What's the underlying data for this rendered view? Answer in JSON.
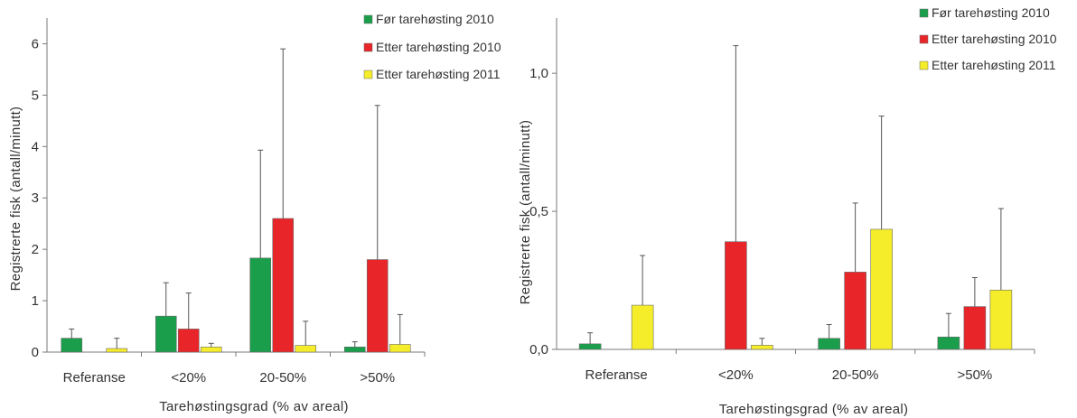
{
  "chart_data": [
    {
      "type": "bar",
      "categories": [
        "Referanse",
        "<20%",
        "20-50%",
        ">50%"
      ],
      "series": [
        {
          "name": "Før tarehøsting 2010",
          "color": "#1a9e4b",
          "values": [
            0.27,
            0.7,
            1.83,
            0.1
          ],
          "errors": [
            0.18,
            0.65,
            2.1,
            0.1
          ]
        },
        {
          "name": "Etter tarehøsting 2010",
          "color": "#e8262a",
          "values": [
            null,
            0.45,
            2.6,
            1.8
          ],
          "errors": [
            null,
            0.7,
            3.3,
            3.0
          ]
        },
        {
          "name": "Etter tarehøsting 2011",
          "color": "#f5ec2a",
          "values": [
            0.07,
            0.1,
            0.13,
            0.15
          ],
          "errors": [
            0.2,
            0.07,
            0.47,
            0.58
          ]
        }
      ],
      "yticks": [
        "0",
        "1",
        "2",
        "3",
        "4",
        "5",
        "6"
      ],
      "ylim": [
        0,
        6.5
      ],
      "ylabel": "Registrerte fisk  (antall/minutt)",
      "xlabel": "Tarehøstingsgrad  (% av areal)",
      "legend_position": "top-right",
      "grid": false
    },
    {
      "type": "bar",
      "categories": [
        "Referanse",
        "<20%",
        "20-50%",
        ">50%"
      ],
      "series": [
        {
          "name": "Før tarehøsting 2010",
          "color": "#1a9e4b",
          "values": [
            0.02,
            null,
            0.04,
            0.045
          ],
          "errors": [
            0.04,
            null,
            0.05,
            0.085
          ]
        },
        {
          "name": "Etter tarehøsting 2010",
          "color": "#e8262a",
          "values": [
            null,
            0.39,
            0.28,
            0.155
          ],
          "errors": [
            null,
            0.71,
            0.25,
            0.105
          ]
        },
        {
          "name": "Etter tarehøsting 2011",
          "color": "#f5ec2a",
          "values": [
            0.16,
            0.015,
            0.435,
            0.215
          ],
          "errors": [
            0.18,
            0.025,
            0.41,
            0.295
          ]
        }
      ],
      "yticks": [
        "0,0",
        "0,5",
        "1,0"
      ],
      "ytick_values": [
        0,
        0.5,
        1.0
      ],
      "ylim": [
        0,
        1.2
      ],
      "ylabel": "Registrerte fisk  (antall/minutt)",
      "xlabel": "Tarehøstingsgrad  (% av areal)",
      "legend_position": "top-right",
      "grid": false
    }
  ]
}
